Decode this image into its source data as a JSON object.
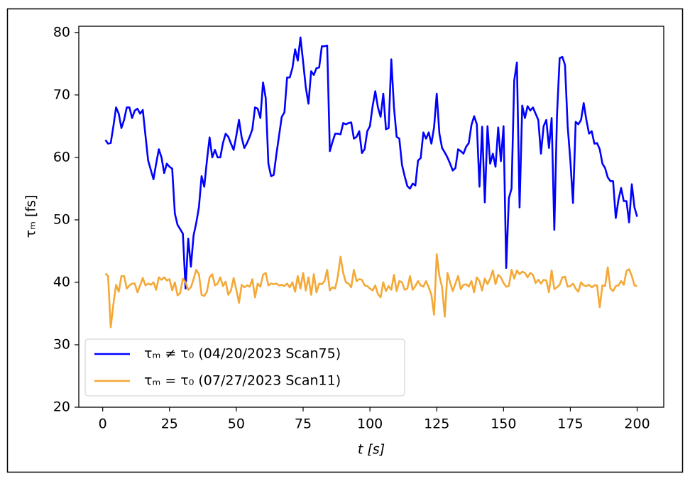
{
  "chart_data": {
    "type": "line",
    "xlabel": "t [s]",
    "ylabel": "τₘ [fs]",
    "xlim": [
      -8.95,
      209.95
    ],
    "ylim": [
      20,
      81
    ],
    "xticks": [
      0,
      25,
      50,
      75,
      100,
      125,
      150,
      175,
      200
    ],
    "yticks": [
      20,
      30,
      40,
      50,
      60,
      70,
      80
    ],
    "legend": "lower left",
    "x": [
      1,
      2,
      3,
      4,
      5,
      6,
      7,
      8,
      9,
      10,
      11,
      12,
      13,
      14,
      15,
      16,
      17,
      18,
      19,
      20,
      21,
      22,
      23,
      24,
      25,
      26,
      27,
      28,
      29,
      30,
      31,
      32,
      33,
      34,
      35,
      36,
      37,
      38,
      39,
      40,
      41,
      42,
      43,
      44,
      45,
      46,
      47,
      48,
      49,
      50,
      51,
      52,
      53,
      54,
      55,
      56,
      57,
      58,
      59,
      60,
      61,
      62,
      63,
      64,
      65,
      66,
      67,
      68,
      69,
      70,
      71,
      72,
      73,
      74,
      75,
      76,
      77,
      78,
      79,
      80,
      81,
      82,
      83,
      84,
      85,
      86,
      87,
      88,
      89,
      90,
      91,
      92,
      93,
      94,
      95,
      96,
      97,
      98,
      99,
      100,
      101,
      102,
      103,
      104,
      105,
      106,
      107,
      108,
      109,
      110,
      111,
      112,
      113,
      114,
      115,
      116,
      117,
      118,
      119,
      120,
      121,
      122,
      123,
      124,
      125,
      126,
      127,
      128,
      129,
      130,
      131,
      132,
      133,
      134,
      135,
      136,
      137,
      138,
      139,
      140,
      141,
      142,
      143,
      144,
      145,
      146,
      147,
      148,
      149,
      150,
      151,
      152,
      153,
      154,
      155,
      156,
      157,
      158,
      159,
      160,
      161,
      162,
      163,
      164,
      165,
      166,
      167,
      168,
      169,
      170,
      171,
      172,
      173,
      174,
      175,
      176,
      177,
      178,
      179,
      180,
      181,
      182,
      183,
      184,
      185,
      186,
      187,
      188,
      189,
      190,
      191,
      192,
      193,
      194,
      195,
      196,
      197,
      198,
      199,
      200
    ],
    "series": [
      {
        "name": "τₘ ≠ τ₀ (04/20/2023 Scan75)",
        "color": "#0000ff",
        "values": [
          62.8,
          62.2,
          62.3,
          65,
          68,
          67,
          64.7,
          66,
          68,
          68,
          66.3,
          67.5,
          67.8,
          67,
          67.6,
          63.5,
          59.5,
          58,
          56.5,
          59,
          61.3,
          60,
          57.5,
          59,
          58.5,
          58.2,
          51,
          49.2,
          48.5,
          47.8,
          39,
          47,
          42.5,
          47.5,
          49.5,
          52,
          57,
          55.3,
          59.5,
          63.2,
          60,
          61.2,
          60,
          60,
          62.3,
          63.8,
          63.3,
          62.2,
          61.2,
          63.5,
          66,
          63.2,
          61.5,
          62.3,
          63.3,
          64.5,
          68,
          67.8,
          66.3,
          72,
          69.5,
          59,
          57,
          57.2,
          60.5,
          63.5,
          66.5,
          67.2,
          72.8,
          72.8,
          74.3,
          77.3,
          75.5,
          79.2,
          75.3,
          71.2,
          68.6,
          73.8,
          73.2,
          74.3,
          74.4,
          77.8,
          77.8,
          77.9,
          61,
          62.5,
          63.8,
          63.8,
          63.7,
          65.5,
          65.3,
          65.5,
          65.6,
          63,
          63.3,
          64.2,
          60.7,
          61.3,
          64.2,
          65,
          68.2,
          70.6,
          68,
          66.5,
          70.2,
          64.5,
          64.7,
          75.7,
          68,
          63.3,
          63,
          58.8,
          57,
          55.4,
          55,
          55.8,
          55.5,
          59.5,
          59.9,
          64,
          63,
          64,
          62.2,
          64.8,
          70.2,
          63.8,
          61.5,
          60.8,
          60,
          59,
          57.9,
          58.3,
          61.3,
          61,
          60.6,
          61.7,
          62.3,
          65.2,
          66.6,
          65.3,
          55.3,
          64.9,
          52.8,
          65,
          59,
          60.6,
          58.5,
          64.8,
          59.4,
          65,
          42.3,
          53.5,
          55,
          72.3,
          75.2,
          52,
          68.3,
          66.3,
          68.2,
          67.5,
          68,
          67,
          66,
          60.6,
          65,
          66,
          61.5,
          66.3,
          48.4,
          66.7,
          75.9,
          76.1,
          74.8,
          65,
          59.5,
          52.7,
          65.7,
          65.3,
          66,
          68.7,
          66,
          63.8,
          64.2,
          62.2,
          62.3,
          61.3,
          59,
          58.3,
          56.8,
          56.2,
          56.2,
          50.3,
          53.2,
          55.1,
          53,
          53,
          49.6,
          55.7,
          52,
          50.5
        ]
      },
      {
        "name": "τₘ = τ₀ (07/27/2023 Scan11)",
        "color": "#f4a836",
        "values": [
          41.4,
          41,
          32.8,
          36.5,
          39.6,
          38.5,
          41,
          41,
          39,
          39.5,
          39.8,
          39.8,
          38.4,
          39.5,
          40.7,
          39.5,
          39.8,
          39.6,
          40,
          38.8,
          40.8,
          40.4,
          40.8,
          40.3,
          40.5,
          38.7,
          40,
          37.9,
          38.3,
          40.6,
          40,
          38.8,
          39.2,
          40.5,
          42,
          41.3,
          38,
          37.8,
          38.5,
          40.8,
          41.3,
          39.5,
          39.8,
          40.8,
          39.4,
          40.1,
          38,
          38.7,
          40.7,
          38.8,
          36.7,
          39.6,
          39.2,
          39.5,
          39.3,
          40.5,
          37.6,
          39.8,
          39.3,
          41.2,
          41.5,
          39.5,
          39.8,
          39.7,
          39.8,
          39.5,
          39.6,
          39.4,
          39.8,
          39.2,
          40,
          38.5,
          41,
          39,
          41.5,
          38.7,
          40.8,
          38,
          41.3,
          38.4,
          39.8,
          39.7,
          40.2,
          42,
          38.7,
          39.2,
          39,
          41,
          44.1,
          41.5,
          40,
          39.8,
          39.2,
          42,
          40.2,
          40.5,
          40.4,
          39.5,
          39.4,
          39,
          38.7,
          39.5,
          38.1,
          37.6,
          40,
          38.6,
          39.4,
          38.8,
          41.2,
          38.6,
          40.2,
          40,
          38.8,
          39,
          41,
          38.8,
          39.4,
          40.2,
          39.5,
          39.3,
          40.2,
          39.2,
          38,
          34.8,
          44.5,
          41,
          39.2,
          34.5,
          41.5,
          40,
          38.6,
          39.8,
          41,
          38.9,
          39.6,
          39.7,
          39.3,
          40.2,
          38.4,
          40.8,
          40.2,
          38.7,
          40.6,
          39.7,
          40.6,
          41.9,
          39.7,
          41.2,
          40.8,
          39.9,
          39.3,
          39.4,
          42,
          40.6,
          41.9,
          41.3,
          41.7,
          41.5,
          40.8,
          41.5,
          41.2,
          39.9,
          40.4,
          39.8,
          40.4,
          40.3,
          38.4,
          41.9,
          38.9,
          39.2,
          39.6,
          40.8,
          40.9,
          39.3,
          39.4,
          39.8,
          39,
          38.5,
          40,
          39.5,
          39.4,
          39.6,
          39.2,
          39.5,
          39.5,
          36,
          39.5,
          39.4,
          42.4,
          39,
          38.6,
          39.4,
          39.5,
          40.2,
          39.6,
          41.8,
          42.1,
          41,
          39.5,
          39.4
        ]
      }
    ]
  }
}
